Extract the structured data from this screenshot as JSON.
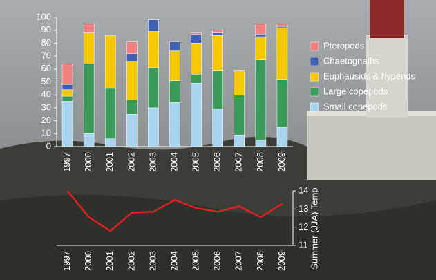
{
  "chart_data": [
    {
      "type": "stacked-bar",
      "categories": [
        "1997",
        "2000",
        "2001",
        "2002",
        "2003",
        "2004",
        "2005",
        "2006",
        "2007",
        "2008",
        "2009"
      ],
      "series": [
        {
          "name": "Small copepods",
          "color": "#a8d4f0",
          "values": [
            35,
            10,
            6,
            25,
            30,
            34,
            49,
            29,
            9,
            5,
            15
          ]
        },
        {
          "name": "Large copepods",
          "color": "#3a9a5a",
          "values": [
            4,
            54,
            39,
            11,
            31,
            17,
            7,
            30,
            31,
            62,
            37
          ]
        },
        {
          "name": "Euphausids & hyperids",
          "color": "#f5c800",
          "values": [
            5,
            24,
            41,
            30,
            28,
            23,
            24,
            27,
            19,
            18,
            40
          ]
        },
        {
          "name": "Chaetognaths",
          "color": "#4060b0",
          "values": [
            4,
            0,
            0.5,
            6,
            9,
            7,
            7,
            2,
            0,
            2,
            1
          ]
        },
        {
          "name": "Pteropods",
          "color": "#f08080",
          "values": [
            16,
            7,
            0,
            9,
            0,
            0,
            1,
            2,
            0,
            8,
            2
          ]
        }
      ],
      "ylim": [
        0,
        100
      ],
      "yticks": [
        0,
        10,
        20,
        30,
        40,
        50,
        60,
        70,
        80,
        90,
        100
      ],
      "legend": "right"
    },
    {
      "type": "line",
      "categories": [
        "1997",
        "2000",
        "2001",
        "2002",
        "2003",
        "2004",
        "2005",
        "2006",
        "2007",
        "2008",
        "2009"
      ],
      "y2_label": "Summer (JJA) Temp",
      "series": [
        {
          "color": "#e02020",
          "axis": "y2",
          "values": [
            14.0,
            12.55,
            11.8,
            12.8,
            12.85,
            13.5,
            13.05,
            12.85,
            13.15,
            12.55,
            13.3
          ]
        }
      ],
      "y2lim": [
        11,
        14
      ],
      "y2ticks": [
        11,
        12,
        13,
        14
      ]
    }
  ]
}
